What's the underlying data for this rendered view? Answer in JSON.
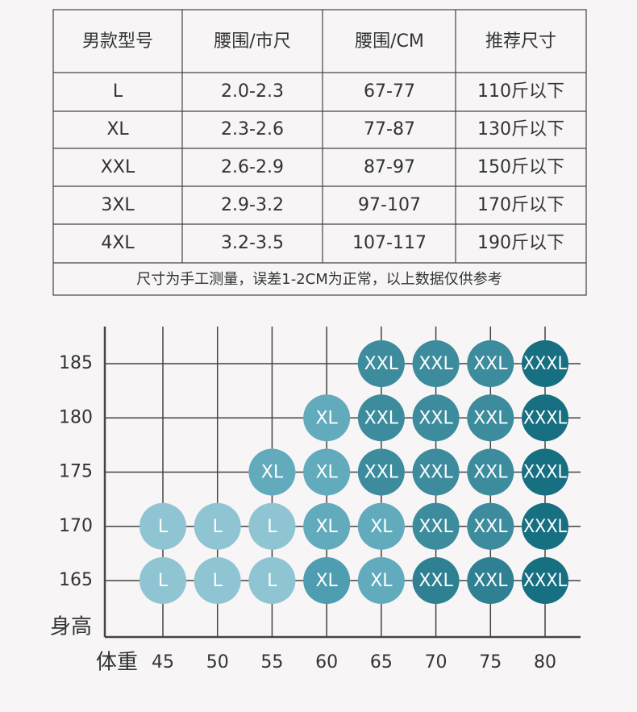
{
  "table": {
    "header": [
      "男款型号",
      "腰围/市尺",
      "腰围/CM",
      "推荐尺寸"
    ],
    "rows": [
      [
        "L",
        "2.0-2.3",
        "67-77",
        "110斤以下"
      ],
      [
        "XL",
        "2.3-2.6",
        "77-87",
        "130斤以下"
      ],
      [
        "XXL",
        "2.6-2.9",
        "87-97",
        "150斤以下"
      ],
      [
        "3XL",
        "2.9-3.2",
        "97-107",
        "170斤以下"
      ],
      [
        "4XL",
        "3.2-3.5",
        "107-117",
        "190斤以下"
      ]
    ],
    "note": "尺寸为手工测量，误差1-2CM为正常，以上数据仅供参考"
  },
  "chart": {
    "type": "scatter",
    "x_label": "体重",
    "y_label": "身高",
    "xticks": [
      45,
      50,
      55,
      60,
      65,
      70,
      75,
      80
    ],
    "yticks": [
      165,
      170,
      175,
      180,
      185
    ],
    "points": [
      {
        "x": 65,
        "y": 185,
        "label": "XXL",
        "color": "#3d8c9e"
      },
      {
        "x": 70,
        "y": 185,
        "label": "XXL",
        "color": "#3d8c9e"
      },
      {
        "x": 75,
        "y": 185,
        "label": "XXL",
        "color": "#3d8c9e"
      },
      {
        "x": 80,
        "y": 185,
        "label": "XXXL",
        "color": "#176f82"
      },
      {
        "x": 60,
        "y": 180,
        "label": "XL",
        "color": "#62abbd"
      },
      {
        "x": 65,
        "y": 180,
        "label": "XXL",
        "color": "#3d8c9e"
      },
      {
        "x": 70,
        "y": 180,
        "label": "XXL",
        "color": "#3d8c9e"
      },
      {
        "x": 75,
        "y": 180,
        "label": "XXL",
        "color": "#3d8c9e"
      },
      {
        "x": 80,
        "y": 180,
        "label": "XXXL",
        "color": "#176f82"
      },
      {
        "x": 55,
        "y": 175,
        "label": "XL",
        "color": "#62abbd"
      },
      {
        "x": 60,
        "y": 175,
        "label": "XL",
        "color": "#62abbd"
      },
      {
        "x": 65,
        "y": 175,
        "label": "XXL",
        "color": "#3d8c9e"
      },
      {
        "x": 70,
        "y": 175,
        "label": "XXL",
        "color": "#3d8c9e"
      },
      {
        "x": 75,
        "y": 175,
        "label": "XXL",
        "color": "#3d8c9e"
      },
      {
        "x": 80,
        "y": 175,
        "label": "XXXL",
        "color": "#176f82"
      },
      {
        "x": 45,
        "y": 170,
        "label": "L",
        "color": "#8fc5d2"
      },
      {
        "x": 50,
        "y": 170,
        "label": "L",
        "color": "#8fc5d2"
      },
      {
        "x": 55,
        "y": 170,
        "label": "L",
        "color": "#8fc5d2"
      },
      {
        "x": 60,
        "y": 170,
        "label": "XL",
        "color": "#62abbd"
      },
      {
        "x": 65,
        "y": 170,
        "label": "XL",
        "color": "#62abbd"
      },
      {
        "x": 70,
        "y": 170,
        "label": "XXL",
        "color": "#3d8c9e"
      },
      {
        "x": 75,
        "y": 170,
        "label": "XXL",
        "color": "#3d8c9e"
      },
      {
        "x": 80,
        "y": 170,
        "label": "XXXL",
        "color": "#176f82"
      },
      {
        "x": 45,
        "y": 165,
        "label": "L",
        "color": "#8fc5d2"
      },
      {
        "x": 50,
        "y": 165,
        "label": "L",
        "color": "#8fc5d2"
      },
      {
        "x": 55,
        "y": 165,
        "label": "L",
        "color": "#8fc5d2"
      },
      {
        "x": 60,
        "y": 165,
        "label": "XL",
        "color": "#4f9db0"
      },
      {
        "x": 65,
        "y": 165,
        "label": "XL",
        "color": "#62abbd"
      },
      {
        "x": 70,
        "y": 165,
        "label": "XXL",
        "color": "#2f8093"
      },
      {
        "x": 75,
        "y": 165,
        "label": "XXL",
        "color": "#2f8093"
      },
      {
        "x": 80,
        "y": 165,
        "label": "XXXL",
        "color": "#176f82"
      }
    ]
  }
}
